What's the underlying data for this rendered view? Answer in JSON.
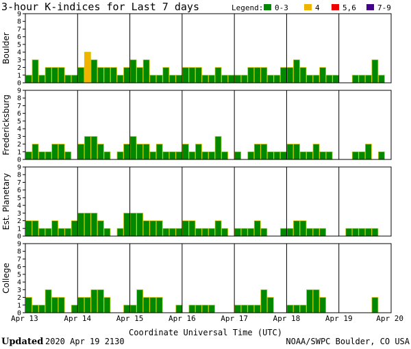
{
  "chart_data": {
    "type": "bar",
    "title": "3-hour K-indices for Last 7 days",
    "legend": {
      "label": "Legend:",
      "placement": "top-right",
      "entries": [
        {
          "label": "0-3",
          "color": "#008800"
        },
        {
          "label": "4",
          "color": "#f0b400"
        },
        {
          "label": "5,6",
          "color": "#ee0000"
        },
        {
          "label": "7-9",
          "color": "#440088"
        }
      ]
    },
    "ylim": [
      0,
      9
    ],
    "yticks": [
      "0",
      "1",
      "2",
      "3",
      "4",
      "5",
      "6",
      "7",
      "8",
      "9"
    ],
    "xlabel": "Coordinate Universal Time (UTC)",
    "x_ticks": [
      "Apr 13",
      "Apr 14",
      "Apr 15",
      "Apr 16",
      "Apr 17",
      "Apr 18",
      "Apr 19",
      "Apr 20"
    ],
    "bars_per_day": 8,
    "bar_outline_color": "#cccc00",
    "panels": [
      {
        "name": "Boulder",
        "values": [
          1,
          3,
          1,
          2,
          2,
          2,
          1,
          1,
          2,
          4,
          3,
          2,
          2,
          2,
          1,
          2,
          3,
          2,
          3,
          1,
          1,
          2,
          1,
          1,
          2,
          2,
          2,
          1,
          1,
          2,
          1,
          1,
          1,
          1,
          2,
          2,
          2,
          1,
          1,
          2,
          2,
          3,
          2,
          1,
          1,
          2,
          1,
          1,
          0,
          0,
          1,
          1,
          1,
          3,
          1,
          0
        ]
      },
      {
        "name": "Fredericksburg",
        "values": [
          1,
          2,
          1,
          1,
          2,
          2,
          1,
          0,
          2,
          3,
          3,
          2,
          1,
          0,
          1,
          2,
          3,
          2,
          2,
          1,
          2,
          1,
          1,
          1,
          2,
          1,
          2,
          1,
          1,
          3,
          1,
          0,
          1,
          0,
          1,
          2,
          2,
          1,
          1,
          1,
          2,
          2,
          1,
          1,
          2,
          1,
          1,
          0,
          0,
          0,
          1,
          1,
          2,
          0,
          1,
          0
        ]
      },
      {
        "name": "Est. Planetary",
        "values": [
          2,
          2,
          1,
          1,
          2,
          1,
          1,
          2,
          3,
          3,
          3,
          2,
          1,
          0,
          1,
          3,
          3,
          3,
          2,
          2,
          2,
          1,
          1,
          1,
          2,
          2,
          1,
          1,
          1,
          2,
          1,
          0,
          1,
          1,
          1,
          2,
          1,
          0,
          0,
          1,
          1,
          2,
          2,
          1,
          1,
          1,
          0,
          0,
          0,
          1,
          1,
          1,
          1,
          1,
          0,
          0
        ]
      },
      {
        "name": "College",
        "values": [
          2,
          1,
          1,
          3,
          2,
          2,
          0,
          1,
          2,
          2,
          3,
          3,
          2,
          0,
          0,
          1,
          1,
          3,
          2,
          2,
          2,
          0,
          0,
          1,
          0,
          1,
          1,
          1,
          1,
          0,
          0,
          0,
          1,
          1,
          1,
          1,
          3,
          2,
          0,
          0,
          1,
          1,
          1,
          3,
          3,
          2,
          0,
          0,
          0,
          0,
          0,
          0,
          0,
          2,
          0,
          0
        ]
      }
    ]
  },
  "footer": {
    "updated_label": "Updated",
    "updated_value": "2020 Apr 19 2130",
    "source": "NOAA/SWPC Boulder, CO USA"
  }
}
